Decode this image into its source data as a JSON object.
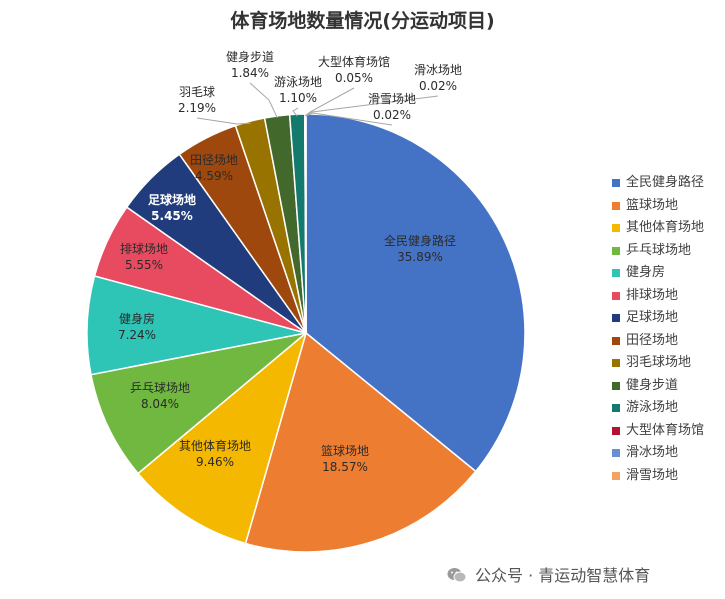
{
  "chart_data": {
    "type": "pie",
    "title": "体育场地数量情况(分运动项目)",
    "legend_position": "right",
    "slices": [
      {
        "name": "全民健身路径",
        "value": 35.89,
        "label": "35.89%",
        "color": "#4472C4"
      },
      {
        "name": "篮球场地",
        "value": 18.57,
        "label": "18.57%",
        "color": "#ED7D31"
      },
      {
        "name": "其他体育场地",
        "value": 9.46,
        "label": "9.46%",
        "color": "#F5B800"
      },
      {
        "name": "乒乓球场地",
        "value": 8.04,
        "label": "8.04%",
        "color": "#70B83F"
      },
      {
        "name": "健身房",
        "value": 7.24,
        "label": "7.24%",
        "color": "#2EC4B6"
      },
      {
        "name": "排球场地",
        "value": 5.55,
        "label": "5.55%",
        "color": "#E84A5F"
      },
      {
        "name": "足球场地",
        "value": 5.45,
        "label": "5.45%",
        "color": "#203C7C"
      },
      {
        "name": "田径场地",
        "value": 4.59,
        "label": "4.59%",
        "color": "#9E480E"
      },
      {
        "name": "羽毛球场地",
        "value": 2.19,
        "label": "2.19%",
        "color": "#997300"
      },
      {
        "name": "健身步道",
        "value": 1.84,
        "label": "1.84%",
        "color": "#43682B"
      },
      {
        "name": "游泳场地",
        "value": 1.1,
        "label": "1.10%",
        "color": "#157A6E"
      },
      {
        "name": "大型体育场馆",
        "value": 0.05,
        "label": "0.05%",
        "color": "#B0132B"
      },
      {
        "name": "滑冰场地",
        "value": 0.02,
        "label": "0.02%",
        "color": "#6A8FD0"
      },
      {
        "name": "滑雪场地",
        "value": 0.02,
        "label": "0.02%",
        "color": "#F4A261"
      }
    ],
    "label_names": {
      "健身步道": "健身步道",
      "羽毛球场地": "羽毛球",
      "游泳场地": "游泳场地",
      "大型体育场馆": "大型体育场馆",
      "滑冰场地": "滑冰场地",
      "滑雪场地": "滑雪场地"
    }
  },
  "watermark": {
    "text": "公众号 · 青运动智慧体育",
    "icon": "wechat-icon"
  }
}
